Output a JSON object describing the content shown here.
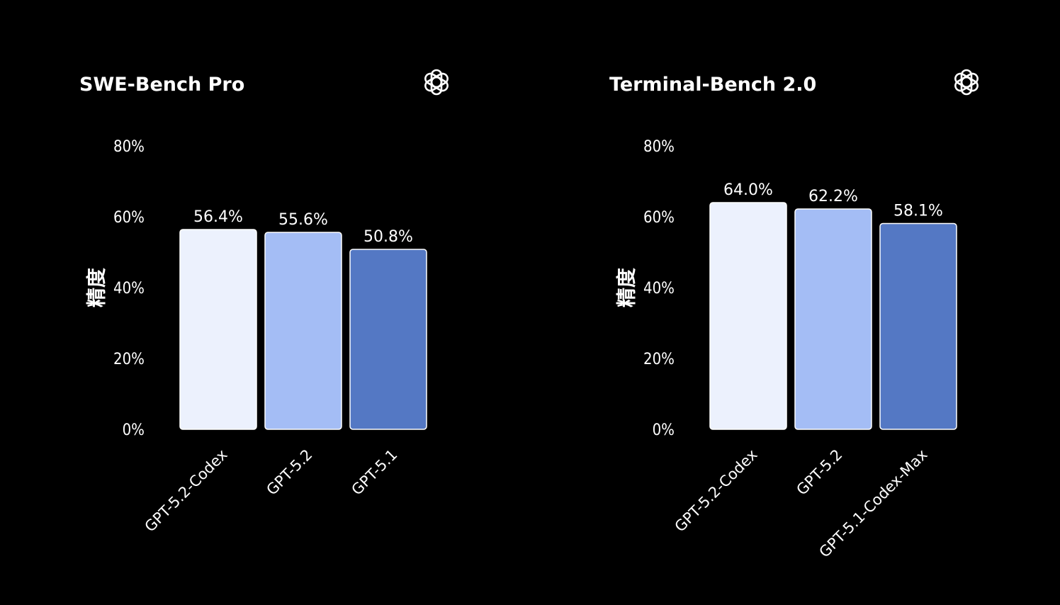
{
  "chart_data": [
    {
      "type": "bar",
      "title": "SWE-Bench Pro",
      "ylabel": "精度",
      "xlabel": "",
      "ylim": [
        0,
        80
      ],
      "yticks": [
        "0%",
        "20%",
        "40%",
        "60%",
        "80%"
      ],
      "categories": [
        "GPT-5.2-Codex",
        "GPT-5.2",
        "GPT-5.1"
      ],
      "values": [
        56.4,
        55.6,
        50.8
      ],
      "value_labels": [
        "56.4%",
        "55.6%",
        "50.8%"
      ],
      "bar_colors": [
        "#ecf1fd",
        "#a4bdf5",
        "#5478c4"
      ],
      "grid": false,
      "legend": "none",
      "logo_icon": "openai-logo-icon"
    },
    {
      "type": "bar",
      "title": "Terminal-Bench 2.0",
      "ylabel": "精度",
      "xlabel": "",
      "ylim": [
        0,
        80
      ],
      "yticks": [
        "0%",
        "20%",
        "40%",
        "60%",
        "80%"
      ],
      "categories": [
        "GPT-5.2-Codex",
        "GPT-5.2",
        "GPT-5.1-Codex-Max"
      ],
      "values": [
        64.0,
        62.2,
        58.1
      ],
      "value_labels": [
        "64.0%",
        "62.2%",
        "58.1%"
      ],
      "bar_colors": [
        "#ecf1fd",
        "#a4bdf5",
        "#5478c4"
      ],
      "grid": false,
      "legend": "none",
      "logo_icon": "openai-logo-icon"
    }
  ]
}
